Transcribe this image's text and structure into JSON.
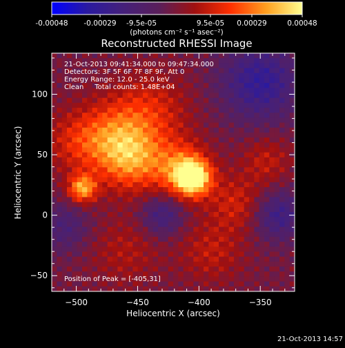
{
  "colorbar": {
    "tick_labels": [
      "-0.00048",
      "-0.00029",
      "-9.5e-05",
      "9.5e-05",
      "0.00029",
      "0.00048"
    ],
    "unit_label": "(photons cm⁻² s⁻¹ asec⁻²)",
    "color_stops": [
      "#0000ff",
      "#2a1aa0",
      "#45207a",
      "#5a1f5a",
      "#a01010",
      "#ff3000",
      "#ffa020",
      "#ffff90"
    ]
  },
  "plot": {
    "title": "Reconstructed RHESSI Image",
    "info_lines": [
      "21-Oct-2013 09:41:34.000 to 09:47:34.000",
      "Detectors: 3F 5F 6F 7F 8F 9F, Att 0",
      "Energy Range: 12.0 - 25.0 keV",
      "Clean     Total counts: 1.48E+04"
    ],
    "peak_label": "Position of Peak = [-405,31]",
    "footer_timestamp": "21-Oct-2013 14:57"
  },
  "chart_data": {
    "type": "heatmap",
    "title": "Reconstructed RHESSI Image",
    "xlabel": "Heliocentric X (arcsec)",
    "ylabel": "Heliocentric Y (arcsec)",
    "xlim": [
      -520,
      -322
    ],
    "ylim": [
      -63,
      134
    ],
    "x_ticks": [
      -500,
      -450,
      -400,
      -350
    ],
    "y_ticks": [
      -50,
      0,
      50,
      100
    ],
    "colorbar_range": [
      -0.00048,
      0.00048
    ],
    "peak": {
      "x": -405,
      "y": 31
    },
    "sources": [
      {
        "x": -405,
        "y": 31,
        "amp": 1.0,
        "sigma": 10
      },
      {
        "x": -415,
        "y": 38,
        "amp": 0.55,
        "sigma": 16
      },
      {
        "x": -495,
        "y": 22,
        "amp": 0.75,
        "sigma": 8
      },
      {
        "x": -455,
        "y": 45,
        "amp": 0.55,
        "sigma": 18
      },
      {
        "x": -470,
        "y": 65,
        "amp": 0.45,
        "sigma": 20
      },
      {
        "x": -440,
        "y": 85,
        "amp": 0.35,
        "sigma": 22
      },
      {
        "x": -500,
        "y": 60,
        "amp": 0.3,
        "sigma": 18
      },
      {
        "x": -370,
        "y": 10,
        "amp": 0.3,
        "sigma": 16
      },
      {
        "x": -345,
        "y": 45,
        "amp": 0.25,
        "sigma": 14
      },
      {
        "x": -390,
        "y": -30,
        "amp": 0.25,
        "sigma": 18
      },
      {
        "x": -460,
        "y": -30,
        "amp": 0.2,
        "sigma": 20
      },
      {
        "x": -350,
        "y": 110,
        "amp": -0.55,
        "sigma": 22
      },
      {
        "x": -335,
        "y": 0,
        "amp": -0.45,
        "sigma": 14
      },
      {
        "x": -430,
        "y": 0,
        "amp": -0.4,
        "sigma": 12
      },
      {
        "x": -510,
        "y": -10,
        "amp": -0.3,
        "sigma": 14
      }
    ]
  }
}
